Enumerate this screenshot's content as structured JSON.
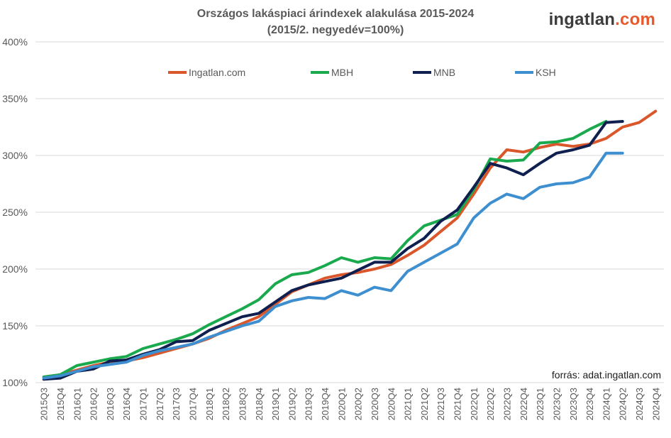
{
  "logo": {
    "main": "ingatlan",
    "accent": ".com"
  },
  "source_note": "forrás: adat.ingatlan.com",
  "chart_data": {
    "type": "line",
    "title": "Országos lakáspiaci árindexek alakulása 2015-2024",
    "subtitle": "(2015/2. negyedév=100%)",
    "xlabel": "",
    "ylabel": "",
    "ylim": [
      100,
      400
    ],
    "yticks": [
      100,
      150,
      200,
      250,
      300,
      350,
      400
    ],
    "ytick_labels": [
      "100%",
      "150%",
      "200%",
      "250%",
      "300%",
      "350%",
      "400%"
    ],
    "grid": true,
    "legend_position": "top",
    "categories": [
      "2015Q3",
      "2015Q4",
      "2016Q1",
      "2016Q2",
      "2016Q3",
      "2016Q4",
      "2017Q1",
      "2017Q2",
      "2017Q3",
      "2017Q4",
      "2018Q1",
      "2018Q2",
      "2018Q3",
      "2018Q4",
      "2019Q1",
      "2019Q2",
      "2019Q3",
      "2019Q4",
      "2020Q1",
      "2020Q2",
      "2020Q3",
      "2020Q4",
      "2021Q1",
      "2021Q2",
      "2021Q3",
      "2021Q4",
      "2022Q1",
      "2022Q2",
      "2022Q3",
      "2022Q4",
      "2023Q1",
      "2023Q2",
      "2023Q3",
      "2023Q4",
      "2024Q1",
      "2024Q2",
      "2024Q3",
      "2024Q4"
    ],
    "series": [
      {
        "name": "Ingatlan.com",
        "color": "#d9572b",
        "values": [
          105,
          107,
          111,
          115,
          118,
          119,
          122,
          126,
          130,
          134,
          139,
          146,
          152,
          158,
          169,
          180,
          186,
          192,
          195,
          197,
          200,
          204,
          212,
          221,
          233,
          245,
          266,
          289,
          305,
          303,
          307,
          310,
          308,
          310,
          315,
          325,
          329,
          339
        ]
      },
      {
        "name": "MBH",
        "color": "#1aaa4d",
        "values": [
          105,
          107,
          115,
          118,
          121,
          123,
          130,
          134,
          138,
          143,
          151,
          158,
          165,
          173,
          187,
          195,
          197,
          203,
          210,
          206,
          210,
          209,
          225,
          238,
          243,
          248,
          270,
          297,
          295,
          296,
          311,
          312,
          315,
          323,
          330,
          null,
          null,
          null
        ]
      },
      {
        "name": "MNB",
        "color": "#0f1f4f",
        "values": [
          103,
          104,
          110,
          112,
          119,
          120,
          125,
          129,
          136,
          137,
          146,
          152,
          158,
          161,
          171,
          181,
          186,
          189,
          192,
          199,
          206,
          206,
          218,
          227,
          242,
          252,
          272,
          293,
          289,
          283,
          293,
          302,
          305,
          309,
          329,
          330,
          null,
          null
        ]
      },
      {
        "name": "KSH",
        "color": "#3e8fd0",
        "values": [
          104,
          106,
          110,
          114,
          116,
          118,
          124,
          128,
          131,
          134,
          140,
          145,
          150,
          154,
          167,
          172,
          175,
          174,
          181,
          177,
          184,
          181,
          198,
          206,
          214,
          222,
          245,
          258,
          266,
          262,
          272,
          275,
          276,
          281,
          302,
          302,
          null,
          null
        ]
      }
    ]
  }
}
